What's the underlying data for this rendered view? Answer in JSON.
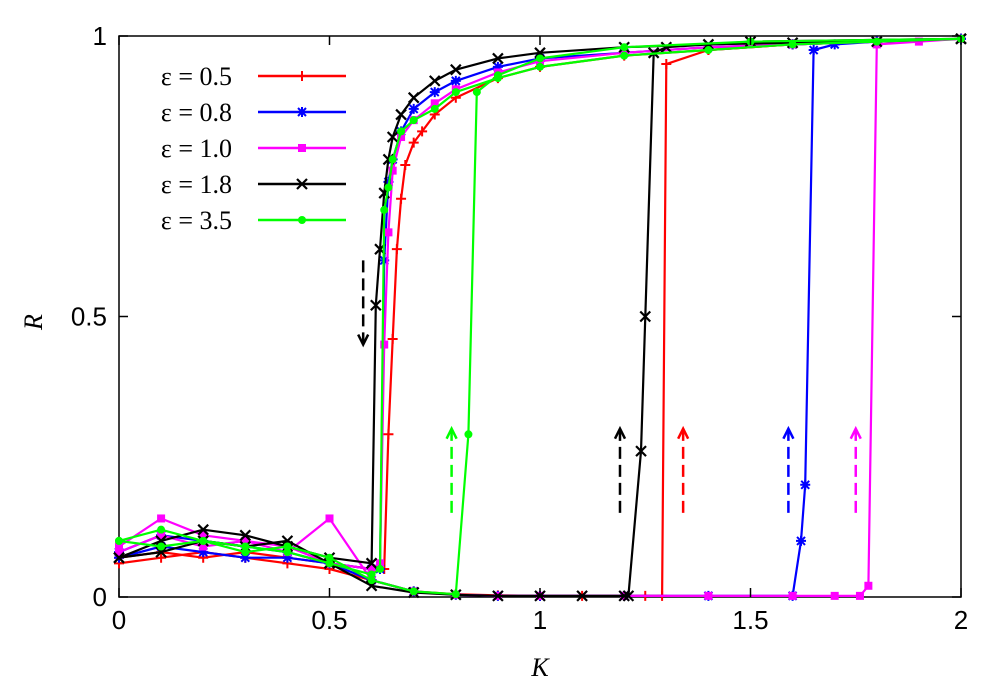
{
  "chart_data": {
    "type": "line",
    "title": "",
    "xlabel": "K",
    "ylabel": "R",
    "xlim": [
      0,
      2
    ],
    "ylim": [
      0,
      1
    ],
    "xticks": [
      {
        "value": 0,
        "label": "0"
      },
      {
        "value": 0.5,
        "label": "0.5"
      },
      {
        "value": 1,
        "label": "1"
      },
      {
        "value": 1.5,
        "label": "1.5"
      },
      {
        "value": 2,
        "label": "2"
      }
    ],
    "yticks": [
      {
        "value": 0,
        "label": "0"
      },
      {
        "value": 0.5,
        "label": "0.5"
      },
      {
        "value": 1,
        "label": "1"
      }
    ],
    "grid": false,
    "legend_position": "top-left",
    "series": [
      {
        "name": "ε = 0.5",
        "color": "#ff0000",
        "marker": "plus",
        "forward": {
          "x": [
            0,
            0.1,
            0.2,
            0.3,
            0.4,
            0.5,
            0.6,
            0.7,
            0.8,
            0.9,
            1.0,
            1.1,
            1.2,
            1.25,
            1.29,
            1.3,
            1.4,
            1.6,
            1.8,
            2.0
          ],
          "y": [
            0.06,
            0.07,
            0.08,
            0.07,
            0.06,
            0.05,
            0.03,
            0.01,
            0.005,
            0.003,
            0.002,
            0.002,
            0.002,
            0.002,
            0.002,
            0.95,
            0.975,
            0.985,
            0.99,
            0.995
          ]
        },
        "backward": {
          "x": [
            2.0,
            1.8,
            1.6,
            1.4,
            1.2,
            1.0,
            0.9,
            0.8,
            0.75,
            0.72,
            0.7,
            0.68,
            0.67,
            0.66,
            0.65,
            0.64,
            0.63,
            0.6,
            0.5,
            0.4,
            0.3,
            0.2,
            0.1,
            0.0
          ],
          "y": [
            0.995,
            0.99,
            0.985,
            0.975,
            0.965,
            0.945,
            0.925,
            0.89,
            0.86,
            0.83,
            0.81,
            0.77,
            0.71,
            0.62,
            0.46,
            0.29,
            0.05,
            0.05,
            0.06,
            0.07,
            0.08,
            0.07,
            0.08,
            0.07
          ]
        }
      },
      {
        "name": "ε = 0.8",
        "color": "#0000ff",
        "marker": "star",
        "forward": {
          "x": [
            0,
            0.1,
            0.2,
            0.3,
            0.4,
            0.5,
            0.6,
            0.7,
            0.8,
            0.9,
            1.0,
            1.2,
            1.4,
            1.6,
            1.62,
            1.63,
            1.65,
            1.7,
            1.8,
            2.0
          ],
          "y": [
            0.07,
            0.09,
            0.08,
            0.07,
            0.07,
            0.06,
            0.03,
            0.01,
            0.004,
            0.002,
            0.002,
            0.002,
            0.002,
            0.002,
            0.1,
            0.2,
            0.975,
            0.985,
            0.99,
            0.995
          ]
        },
        "backward": {
          "x": [
            2.0,
            1.8,
            1.6,
            1.4,
            1.2,
            1.0,
            0.9,
            0.8,
            0.75,
            0.7,
            0.67,
            0.65,
            0.64,
            0.63,
            0.62,
            0.6,
            0.5,
            0.4,
            0.3,
            0.2,
            0.1,
            0.0
          ],
          "y": [
            0.995,
            0.99,
            0.985,
            0.98,
            0.97,
            0.96,
            0.945,
            0.92,
            0.9,
            0.87,
            0.83,
            0.78,
            0.74,
            0.6,
            0.05,
            0.05,
            0.06,
            0.08,
            0.09,
            0.1,
            0.11,
            0.08
          ]
        }
      },
      {
        "name": "ε = 1.0",
        "color": "#ff00ff",
        "marker": "square",
        "forward": {
          "x": [
            0,
            0.1,
            0.2,
            0.3,
            0.4,
            0.5,
            0.6,
            0.7,
            0.8,
            0.9,
            1.0,
            1.2,
            1.4,
            1.6,
            1.7,
            1.76,
            1.78,
            1.8,
            1.9,
            2.0
          ],
          "y": [
            0.08,
            0.11,
            0.09,
            0.1,
            0.08,
            0.14,
            0.03,
            0.01,
            0.004,
            0.002,
            0.002,
            0.002,
            0.002,
            0.002,
            0.002,
            0.002,
            0.02,
            0.985,
            0.99,
            0.995
          ]
        },
        "backward": {
          "x": [
            2.0,
            1.8,
            1.6,
            1.4,
            1.2,
            1.0,
            0.9,
            0.8,
            0.75,
            0.7,
            0.67,
            0.65,
            0.64,
            0.63,
            0.62,
            0.6,
            0.5,
            0.4,
            0.3,
            0.2,
            0.1,
            0.0
          ],
          "y": [
            0.995,
            0.99,
            0.985,
            0.98,
            0.97,
            0.955,
            0.935,
            0.905,
            0.88,
            0.85,
            0.82,
            0.76,
            0.65,
            0.45,
            0.06,
            0.05,
            0.06,
            0.09,
            0.1,
            0.11,
            0.14,
            0.09
          ]
        }
      },
      {
        "name": "ε = 1.8",
        "color": "#000000",
        "marker": "cross",
        "forward": {
          "x": [
            0,
            0.1,
            0.2,
            0.3,
            0.4,
            0.5,
            0.6,
            0.7,
            0.8,
            0.9,
            1.0,
            1.1,
            1.2,
            1.21,
            1.24,
            1.25,
            1.27,
            1.3,
            1.5,
            2.0
          ],
          "y": [
            0.07,
            0.08,
            0.1,
            0.09,
            0.1,
            0.06,
            0.02,
            0.008,
            0.004,
            0.002,
            0.002,
            0.002,
            0.002,
            0.002,
            0.26,
            0.5,
            0.97,
            0.98,
            0.99,
            0.995
          ]
        },
        "backward": {
          "x": [
            2.0,
            1.8,
            1.6,
            1.4,
            1.2,
            1.0,
            0.9,
            0.8,
            0.75,
            0.7,
            0.67,
            0.65,
            0.64,
            0.63,
            0.62,
            0.61,
            0.6,
            0.5,
            0.4,
            0.3,
            0.2,
            0.1,
            0.0
          ],
          "y": [
            0.995,
            0.99,
            0.988,
            0.985,
            0.98,
            0.97,
            0.96,
            0.94,
            0.92,
            0.89,
            0.86,
            0.82,
            0.78,
            0.72,
            0.62,
            0.52,
            0.06,
            0.07,
            0.09,
            0.11,
            0.12,
            0.1,
            0.07
          ]
        }
      },
      {
        "name": "ε = 3.5",
        "color": "#00ff00",
        "marker": "circle",
        "forward": {
          "x": [
            0,
            0.1,
            0.2,
            0.3,
            0.4,
            0.5,
            0.6,
            0.7,
            0.8,
            0.83,
            0.85,
            0.9,
            1.0,
            1.2,
            1.5,
            2.0
          ],
          "y": [
            0.1,
            0.09,
            0.1,
            0.08,
            0.09,
            0.07,
            0.03,
            0.01,
            0.005,
            0.29,
            0.9,
            0.93,
            0.96,
            0.98,
            0.99,
            0.995
          ]
        },
        "backward": {
          "x": [
            2.0,
            1.8,
            1.6,
            1.4,
            1.2,
            1.0,
            0.9,
            0.8,
            0.75,
            0.7,
            0.67,
            0.65,
            0.64,
            0.63,
            0.62,
            0.6,
            0.5,
            0.4,
            0.3,
            0.2,
            0.1,
            0.0
          ],
          "y": [
            0.995,
            0.99,
            0.985,
            0.975,
            0.965,
            0.945,
            0.925,
            0.9,
            0.87,
            0.85,
            0.83,
            0.78,
            0.73,
            0.69,
            0.05,
            0.04,
            0.06,
            0.08,
            0.09,
            0.1,
            0.12,
            0.1
          ]
        }
      }
    ],
    "annotations": [
      {
        "type": "arrow",
        "direction": "down",
        "color": "#000000",
        "x": 0.58,
        "y_from": 0.6,
        "y_to": 0.45
      },
      {
        "type": "arrow",
        "direction": "up",
        "color": "#00ff00",
        "x": 0.79,
        "y_from": 0.15,
        "y_to": 0.3
      },
      {
        "type": "arrow",
        "direction": "up",
        "color": "#000000",
        "x": 1.19,
        "y_from": 0.15,
        "y_to": 0.3
      },
      {
        "type": "arrow",
        "direction": "up",
        "color": "#ff0000",
        "x": 1.34,
        "y_from": 0.15,
        "y_to": 0.3
      },
      {
        "type": "arrow",
        "direction": "up",
        "color": "#0000ff",
        "x": 1.59,
        "y_from": 0.15,
        "y_to": 0.3
      },
      {
        "type": "arrow",
        "direction": "up",
        "color": "#ff00ff",
        "x": 1.75,
        "y_from": 0.15,
        "y_to": 0.3
      }
    ]
  }
}
